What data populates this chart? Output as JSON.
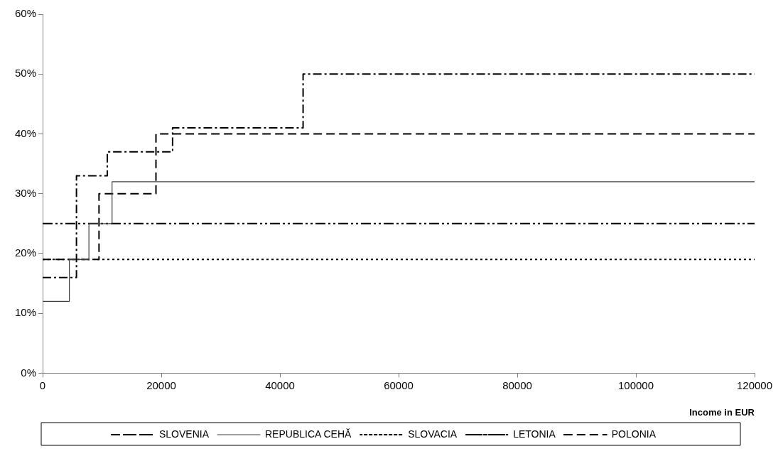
{
  "chart_data": {
    "type": "step",
    "xlabel": "Income in EUR",
    "xlim": [
      0,
      120000
    ],
    "xticks": [
      0,
      20000,
      40000,
      60000,
      80000,
      100000,
      120000
    ],
    "ylim": [
      0,
      60
    ],
    "yticks": [
      {
        "value": 0,
        "label": "0%"
      },
      {
        "value": 10,
        "label": "10%"
      },
      {
        "value": 20,
        "label": "20%"
      },
      {
        "value": 30,
        "label": "30%"
      },
      {
        "value": 40,
        "label": "40%"
      },
      {
        "value": 50,
        "label": "50%"
      },
      {
        "value": 60,
        "label": "60%"
      }
    ],
    "grid": false,
    "legend": "bottom",
    "marker": "none",
    "series": [
      {
        "name": "SLOVENIA",
        "color": "#000000",
        "line_style": "dashdot",
        "x": [
          0,
          5700,
          10900,
          21900,
          43900,
          120000
        ],
        "values": [
          16,
          33,
          37,
          41,
          50,
          50
        ]
      },
      {
        "name": "REPUBLICA CEHĂ",
        "color": "#404040",
        "line_style": "solid",
        "x": [
          0,
          4500,
          7800,
          11700,
          120000
        ],
        "values": [
          12,
          19,
          25,
          32,
          32
        ]
      },
      {
        "name": "SLOVACIA",
        "color": "#000000",
        "line_style": "dotted",
        "x": [
          0,
          120000
        ],
        "values": [
          19,
          19
        ]
      },
      {
        "name": "LETONIA",
        "color": "#000000",
        "line_style": "dashdotdot",
        "x": [
          0,
          120000
        ],
        "values": [
          25,
          25
        ]
      },
      {
        "name": "POLONIA",
        "color": "#000000",
        "line_style": "dashed",
        "x": [
          0,
          9500,
          19100,
          120000
        ],
        "values": [
          19,
          30,
          40,
          40
        ]
      }
    ]
  }
}
